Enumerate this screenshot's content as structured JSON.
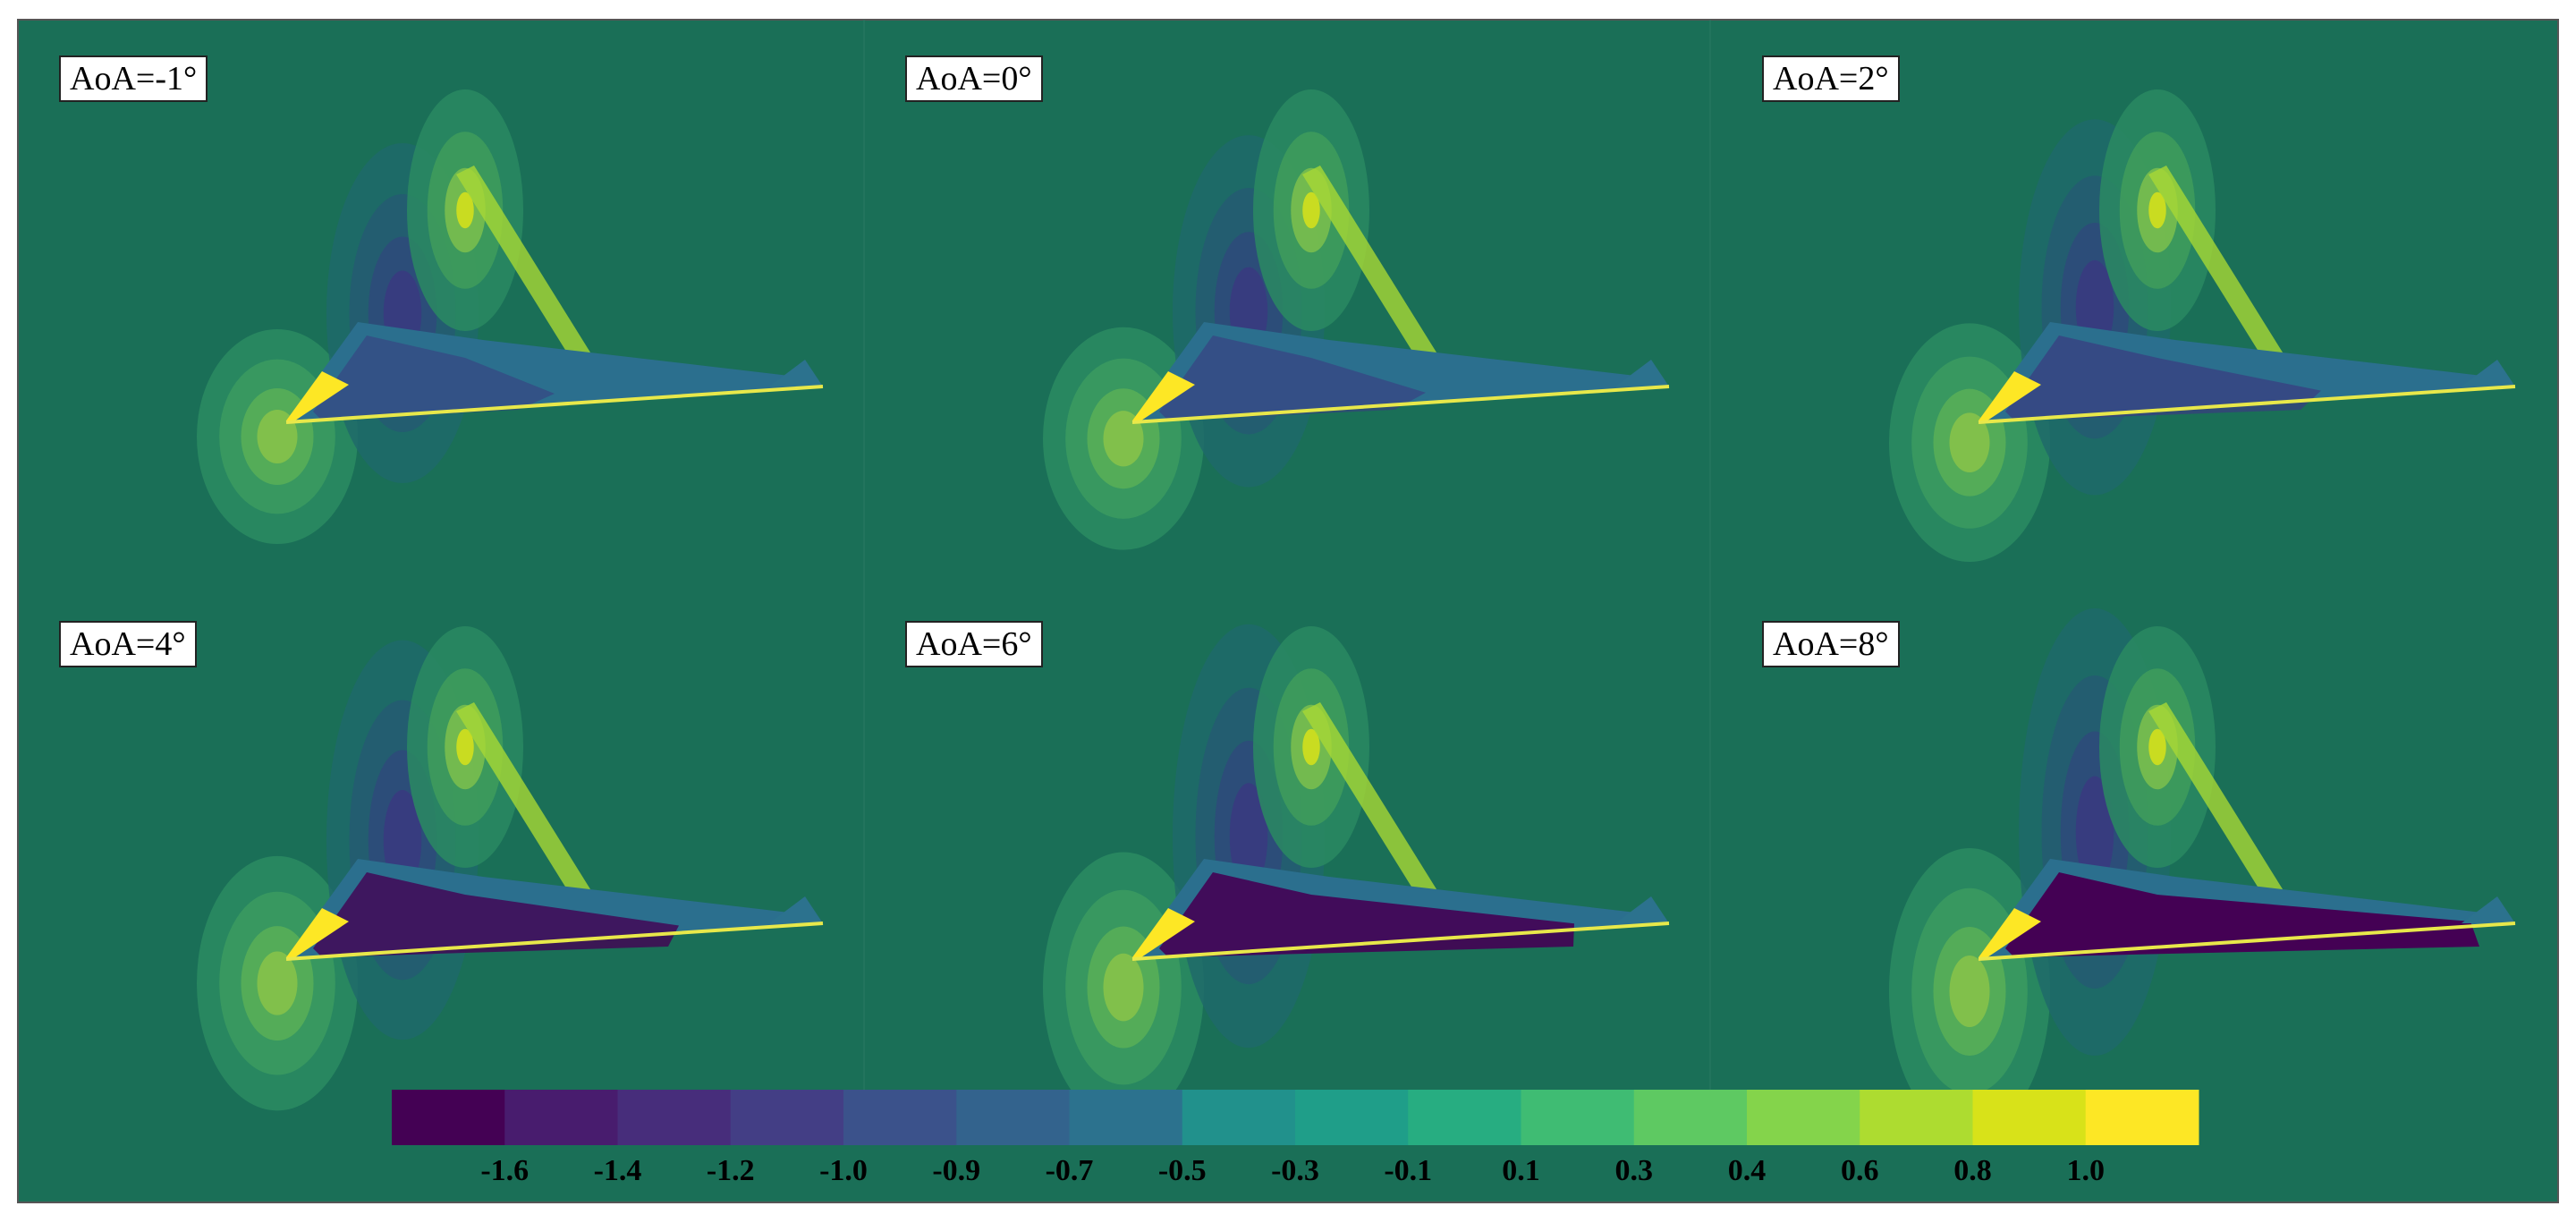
{
  "panels": [
    {
      "label": "AoA=-1°",
      "angle": -1
    },
    {
      "label": "AoA=0°",
      "angle": 0
    },
    {
      "label": "AoA=2°",
      "angle": 2
    },
    {
      "label": "AoA=4°",
      "angle": 4
    },
    {
      "label": "AoA=6°",
      "angle": 6
    },
    {
      "label": "AoA=8°",
      "angle": 8
    }
  ],
  "colorbar": {
    "colors": [
      "#440154",
      "#481c6e",
      "#472d7b",
      "#433e85",
      "#3b528b",
      "#33638d",
      "#2c728e",
      "#21918c",
      "#1f9e89",
      "#27ad81",
      "#3fbc73",
      "#5ec962",
      "#84d44b",
      "#addc30",
      "#d8e219",
      "#fde725"
    ],
    "ticks": [
      "-1.6",
      "-1.4",
      "-1.2",
      "-1.0",
      "-0.9",
      "-0.7",
      "-0.5",
      "-0.3",
      "-0.1",
      "0.1",
      "0.3",
      "0.4",
      "0.6",
      "0.8",
      "1.0"
    ]
  },
  "colors": {
    "background_field": "#1a6f57",
    "frame": "#555555"
  }
}
